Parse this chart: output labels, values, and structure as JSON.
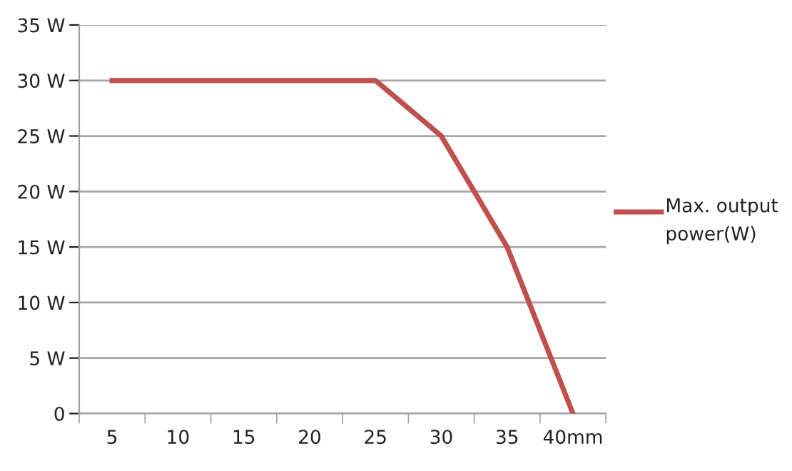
{
  "chart_data": {
    "type": "line",
    "categories": [
      "5",
      "10",
      "15",
      "20",
      "25",
      "30",
      "35",
      "40mm"
    ],
    "series": [
      {
        "name": "Max. output power(W)",
        "color": "#c0504d",
        "values": [
          30,
          30,
          30,
          30,
          30,
          25,
          15,
          0
        ]
      }
    ],
    "ylim": [
      0,
      35
    ],
    "yticks": [
      0,
      {
        "value": 5,
        "label": "5 W"
      },
      {
        "value": 10,
        "label": "10 W"
      },
      {
        "value": 15,
        "label": "15 W"
      },
      {
        "value": 20,
        "label": "20 W"
      },
      {
        "value": 25,
        "label": "25 W"
      },
      {
        "value": 30,
        "label": "30 W"
      },
      {
        "value": 35,
        "label": "35 W"
      }
    ],
    "grid": "y",
    "legend": "right",
    "marker": "none",
    "line_style": "solid"
  }
}
